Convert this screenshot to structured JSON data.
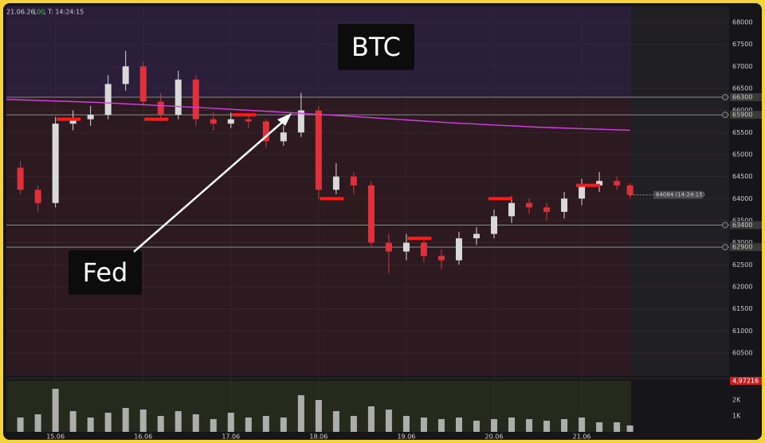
{
  "header": [
    "21.06.26,",
    "100",
    ", T: 14:24:15"
  ],
  "chart_data": {
    "type": "candlestick",
    "annotations": [
      "BTC",
      "Fed"
    ],
    "xlim": [
      14.44,
      22.68
    ],
    "xticks": [
      {
        "value": 15,
        "label": "15.06"
      },
      {
        "value": 16,
        "label": "16.06"
      },
      {
        "value": 17,
        "label": "17.06"
      },
      {
        "value": 18,
        "label": "18.06"
      },
      {
        "value": 19,
        "label": "19.06"
      },
      {
        "value": 20,
        "label": "20.06"
      },
      {
        "value": 21,
        "label": "21.06"
      }
    ],
    "ylim": [
      59975,
      68360
    ],
    "yticks": [
      60500,
      61000,
      61500,
      62000,
      62500,
      63000,
      63500,
      64000,
      64500,
      65000,
      65500,
      66000,
      66500,
      67000,
      67500,
      68000
    ],
    "grid": true,
    "up_color": "#d9d9d9",
    "down_color": "#e0303a",
    "x": [
      14.6,
      14.8,
      15.0,
      15.2,
      15.4,
      15.6,
      15.8,
      16.0,
      16.2,
      16.4,
      16.6,
      16.8,
      17.0,
      17.2,
      17.4,
      17.6,
      17.8,
      18.0,
      18.2,
      18.4,
      18.6,
      18.8,
      19.0,
      19.2,
      19.4,
      19.6,
      19.8,
      20.0,
      20.2,
      20.4,
      20.6,
      20.8,
      21.0,
      21.2,
      21.4,
      21.55
    ],
    "open": [
      64700,
      64200,
      63900,
      65700,
      65800,
      65900,
      66600,
      67000,
      66200,
      65900,
      66700,
      65800,
      65700,
      65800,
      65750,
      65300,
      65500,
      66000,
      64200,
      64500,
      64300,
      63000,
      62800,
      63000,
      62700,
      62600,
      63100,
      63200,
      63600,
      63900,
      63800,
      63700,
      64000,
      64300,
      64400,
      64300
    ],
    "high": [
      64850,
      64300,
      65850,
      66000,
      66100,
      66800,
      67350,
      67100,
      66400,
      66900,
      66800,
      65950,
      65950,
      65900,
      65800,
      65650,
      66400,
      66100,
      64800,
      64600,
      64400,
      63200,
      63200,
      63100,
      62850,
      63250,
      63350,
      63750,
      64050,
      64000,
      63900,
      64150,
      64450,
      64600,
      64500,
      64350
    ],
    "low": [
      64100,
      63700,
      63800,
      65550,
      65650,
      65800,
      66450,
      66100,
      65750,
      65800,
      65650,
      65550,
      65600,
      65600,
      65150,
      65200,
      65400,
      64000,
      64100,
      64100,
      62900,
      62300,
      62600,
      62550,
      62400,
      62500,
      62950,
      63100,
      63450,
      63650,
      63500,
      63550,
      63850,
      64150,
      64200,
      64000
    ],
    "close": [
      64200,
      63900,
      65700,
      65800,
      65900,
      66600,
      67000,
      66200,
      65900,
      66700,
      65800,
      65700,
      65800,
      65750,
      65300,
      65500,
      66000,
      64200,
      64500,
      64300,
      63000,
      62800,
      63000,
      62700,
      62600,
      63100,
      63200,
      63600,
      63900,
      63800,
      63700,
      64000,
      64300,
      64400,
      64300,
      64084
    ],
    "volume": [
      900,
      1100,
      2700,
      1300,
      900,
      1200,
      1500,
      1400,
      1000,
      1300,
      1100,
      800,
      1200,
      900,
      1000,
      900,
      2300,
      2000,
      1300,
      1000,
      1600,
      1400,
      1000,
      900,
      800,
      900,
      700,
      800,
      900,
      800,
      700,
      800,
      900,
      600,
      600,
      400
    ],
    "volume_color": "#cfcfcf",
    "y2lim": [
      0,
      3200
    ],
    "y2ticks": [
      {
        "value": 1000,
        "label": "1K"
      },
      {
        "value": 2000,
        "label": "2K"
      }
    ],
    "indicator_label": "4,97216",
    "moving_average": {
      "color": "#d63ce6",
      "x": [
        14.44,
        15.5,
        16.5,
        17.5,
        18.5,
        19.5,
        20.5,
        21.55
      ],
      "values": [
        66250,
        66180,
        66080,
        65970,
        65850,
        65720,
        65620,
        65550
      ]
    },
    "levels": [
      66300,
      65900,
      63400,
      62900
    ],
    "poc": {
      "color": "#ff1a1a",
      "x": [
        15.15,
        16.15,
        17.15,
        18.15,
        19.15,
        20.07,
        21.07
      ],
      "values": [
        65800,
        65800,
        65900,
        64000,
        63100,
        64000,
        64300
      ]
    },
    "last_price": {
      "value": 64084,
      "value_label": "64084 (14:24:15)"
    }
  }
}
